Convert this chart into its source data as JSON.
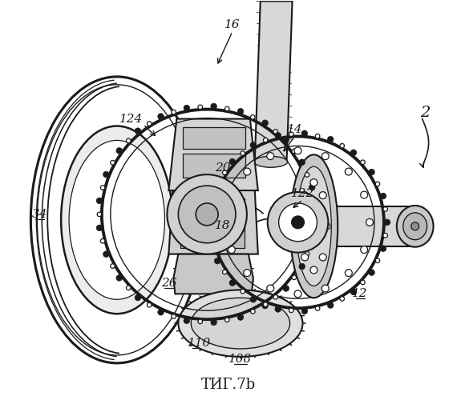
{
  "title": "ΤИГ.7b",
  "bg": "#ffffff",
  "fg": "#1a1a1a",
  "figsize": [
    5.7,
    5.0
  ],
  "dpi": 100
}
